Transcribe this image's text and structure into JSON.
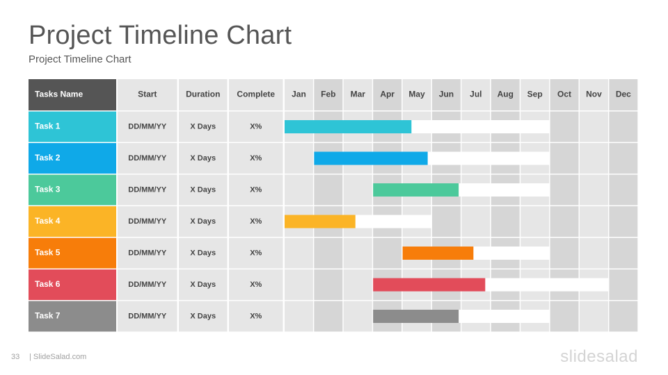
{
  "slide": {
    "title": "Project Timeline Chart",
    "subtitle": "Project Timeline Chart",
    "page_number": "33",
    "footer": "| SlideSalad.com",
    "logo": "slidesalad"
  },
  "colors": {
    "header_task": "#555555",
    "header_cell": "#e6e6e6",
    "cell": "#e6e6e6",
    "month_dark": "#d6d6d6",
    "month_light": "#e6e6e6",
    "track": "#ffffff",
    "text_dark": "#444444"
  },
  "chart_data": {
    "type": "table",
    "columns": [
      "Tasks Name",
      "Start",
      "Duration",
      "Complete"
    ],
    "months": [
      "Jan",
      "Feb",
      "Mar",
      "Apr",
      "May",
      "Jun",
      "Jul",
      "Aug",
      "Sep",
      "Oct",
      "Nov",
      "Dec"
    ],
    "tasks": [
      {
        "name": "Task 1",
        "start": "DD/MM/YY",
        "duration": "X Days",
        "complete": "X%",
        "color": "#2ec4d6",
        "bar_start_month": 0,
        "bar_end_month": 9,
        "progress_end_month": 4.3
      },
      {
        "name": "Task 2",
        "start": "DD/MM/YY",
        "duration": "X Days",
        "complete": "X%",
        "color": "#0fa9e8",
        "bar_start_month": 1,
        "bar_end_month": 9,
        "progress_end_month": 4.85
      },
      {
        "name": "Task 3",
        "start": "DD/MM/YY",
        "duration": "X Days",
        "complete": "X%",
        "color": "#4cc99b",
        "bar_start_month": 3,
        "bar_end_month": 9,
        "progress_end_month": 5.9
      },
      {
        "name": "Task 4",
        "start": "DD/MM/YY",
        "duration": "X Days",
        "complete": "X%",
        "color": "#fbb426",
        "bar_start_month": 0,
        "bar_end_month": 5,
        "progress_end_month": 2.4
      },
      {
        "name": "Task 5",
        "start": "DD/MM/YY",
        "duration": "X Days",
        "complete": "X%",
        "color": "#f77d0a",
        "bar_start_month": 4,
        "bar_end_month": 9,
        "progress_end_month": 6.4
      },
      {
        "name": "Task 6",
        "start": "DD/MM/YY",
        "duration": "X Days",
        "complete": "X%",
        "color": "#e24c5a",
        "bar_start_month": 3,
        "bar_end_month": 11,
        "progress_end_month": 6.8
      },
      {
        "name": "Task 7",
        "start": "DD/MM/YY",
        "duration": "X Days",
        "complete": "X%",
        "color": "#8c8c8c",
        "bar_start_month": 3,
        "bar_end_month": 9,
        "progress_end_month": 5.9
      }
    ]
  }
}
